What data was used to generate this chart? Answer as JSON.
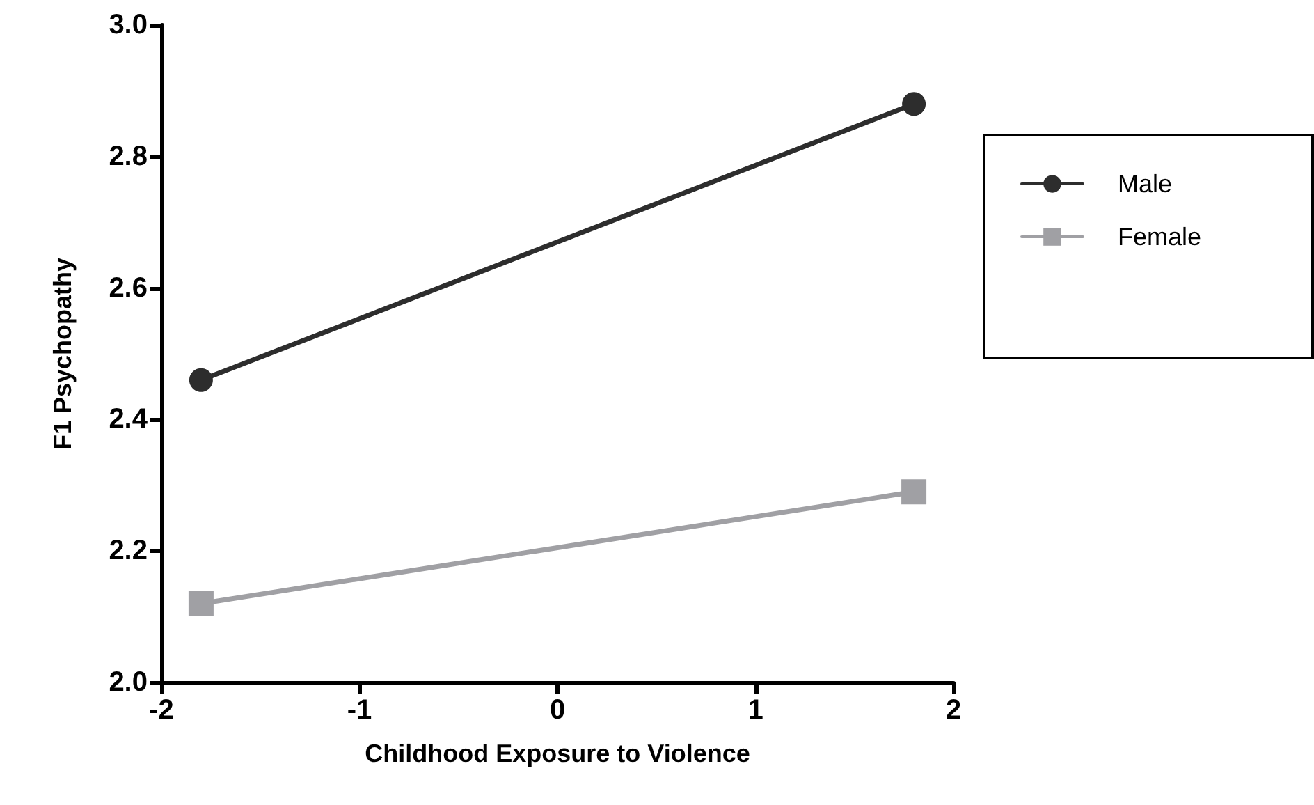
{
  "chart_data": {
    "type": "line",
    "xlabel": "Childhood Exposure to Violence",
    "ylabel": "F1 Psychopathy",
    "x": [
      -1.8,
      1.8
    ],
    "series": [
      {
        "name": "Male",
        "color": "#2d2d2d",
        "values": [
          2.46,
          2.88
        ],
        "marker": "circle"
      },
      {
        "name": "Female",
        "color": "#a0a0a4",
        "values": [
          2.12,
          2.29
        ],
        "marker": "square"
      }
    ],
    "xlim": [
      -2,
      2
    ],
    "xticks": [
      -2,
      -1,
      0,
      1,
      2
    ],
    "ylim": [
      2.0,
      3.0
    ],
    "yticks": [
      {
        "value": 2.0,
        "label": "2.0"
      },
      {
        "value": 2.2,
        "label": "2.2"
      },
      {
        "value": 2.4,
        "label": "2.4"
      },
      {
        "value": 2.6,
        "label": "2.6"
      },
      {
        "value": 2.8,
        "label": "2.8"
      },
      {
        "value": 3.0,
        "label": "3.0"
      }
    ],
    "grid": false,
    "legend": "right",
    "line_style": "solid"
  }
}
